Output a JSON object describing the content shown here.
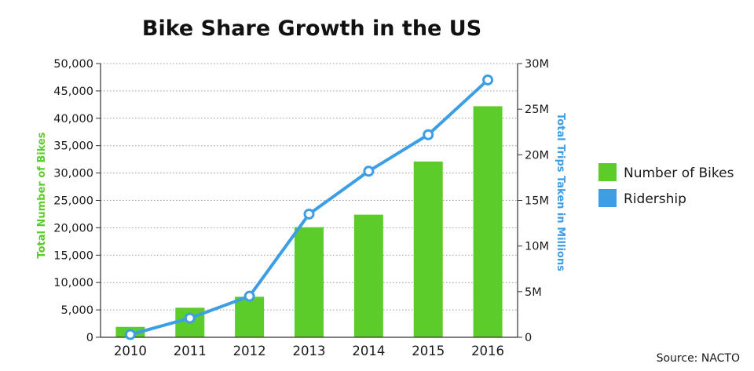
{
  "chart_data": {
    "type": "bar",
    "title": "Bike Share Growth in the US",
    "categories": [
      "2010",
      "2011",
      "2012",
      "2013",
      "2014",
      "2015",
      "2016"
    ],
    "y_left": {
      "label": "Total Number of Bikes",
      "range": [
        0,
        50000
      ],
      "ticks": [
        "0",
        "5,000",
        "10,000",
        "15,000",
        "20,000",
        "25,000",
        "30,000",
        "35,000",
        "40,000",
        "45,000",
        "50,000"
      ]
    },
    "y_right": {
      "label": "Total Trips Taken in Millions",
      "range": [
        0,
        30
      ],
      "ticks": [
        "0",
        "5M",
        "10M",
        "15M",
        "20M",
        "25M",
        "30M"
      ]
    },
    "series": [
      {
        "name": "Number of Bikes",
        "type": "bar",
        "axis": "left",
        "color": "#5ccc2b",
        "values": [
          1900,
          5400,
          7400,
          20100,
          22400,
          32100,
          42200
        ]
      },
      {
        "name": "Ridership",
        "type": "line",
        "axis": "right",
        "color": "#3d9ee6",
        "values": [
          0.3,
          2.1,
          4.5,
          13.5,
          18.2,
          22.2,
          28.2
        ]
      }
    ],
    "legend_position": "right",
    "grid": "dotted horizontal",
    "source": "Source: NACTO"
  }
}
